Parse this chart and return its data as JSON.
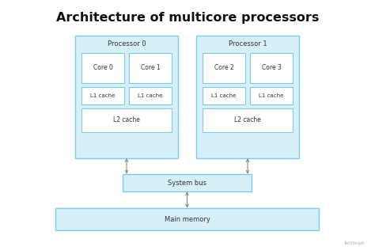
{
  "title": "Architecture of multicore processors",
  "title_fontsize": 11.5,
  "title_fontweight": "bold",
  "fig_bg": "#ffffff",
  "box_fill": "#d6f0f8",
  "box_edge": "#7ecce8",
  "inner_fill": "#ffffff",
  "inner_edge": "#7ecce8",
  "text_color": "#333333",
  "font_size": 5.5,
  "processors": [
    "Processor 0",
    "Processor 1"
  ],
  "cores": [
    [
      "Core 0",
      "Core 1"
    ],
    [
      "Core 2",
      "Core 3"
    ]
  ],
  "l1": [
    [
      "L1 cache",
      "L1 cache"
    ],
    [
      "L1 cache",
      "L1 cache"
    ]
  ],
  "l2": [
    "L2 cache",
    "L2 cache"
  ],
  "system_bus": "System bus",
  "main_memory": "Main memory",
  "watermark": "TechTarget",
  "arrow_color": "#888888"
}
